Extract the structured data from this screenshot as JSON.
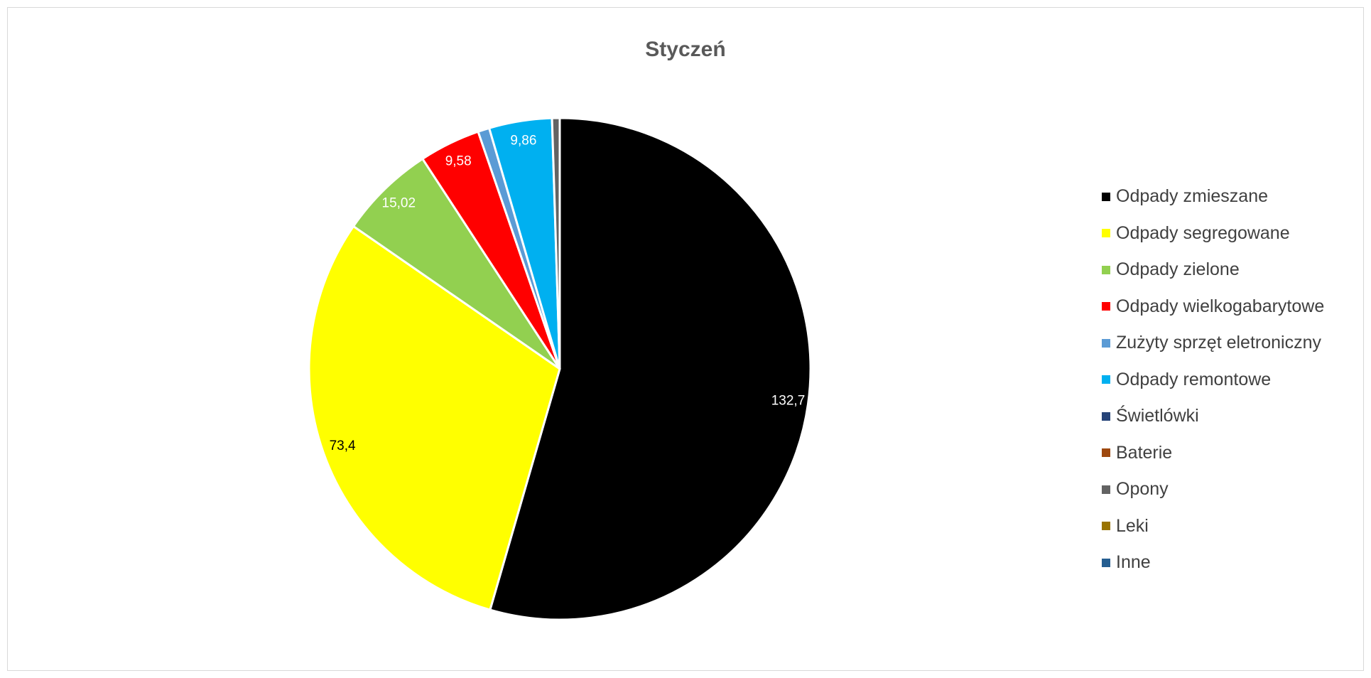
{
  "chart_data": {
    "type": "pie",
    "title": "Styczeń",
    "categories": [
      "Odpady zmieszane",
      "Odpady segregowane",
      "Odpady zielone",
      "Odpady wielkogabarytowe",
      "Zużyty sprzęt eletroniczny",
      "Odpady remontowe",
      "Świetlówki",
      "Baterie",
      "Opony",
      "Leki",
      "Inne"
    ],
    "values": [
      132.7,
      73.4,
      15.02,
      9.58,
      1.8,
      9.86,
      0,
      0,
      1.2,
      0,
      0
    ],
    "data_labels": [
      "132,7",
      "73,4",
      "15,02",
      "9,58",
      "",
      "9,86",
      "",
      "",
      "",
      "",
      ""
    ],
    "colors": [
      "#000000",
      "#FFFF00",
      "#92D050",
      "#FF0000",
      "#5B9BD5",
      "#00B0F0",
      "#264478",
      "#9E480E",
      "#636363",
      "#997300",
      "#255E91"
    ],
    "label_colors": [
      "#FFFFFF",
      "#000000",
      "#FFFFFF",
      "#FFFFFF",
      "#FFFFFF",
      "#FFFFFF",
      "#FFFFFF",
      "#FFFFFF",
      "#FFFFFF",
      "#FFFFFF",
      "#FFFFFF"
    ],
    "legend_position": "right"
  }
}
